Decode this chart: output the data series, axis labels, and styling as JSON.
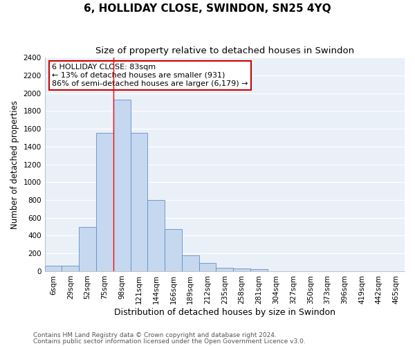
{
  "title1": "6, HOLLIDAY CLOSE, SWINDON, SN25 4YQ",
  "title2": "Size of property relative to detached houses in Swindon",
  "xlabel": "Distribution of detached houses by size in Swindon",
  "ylabel": "Number of detached properties",
  "categories": [
    "6sqm",
    "29sqm",
    "52sqm",
    "75sqm",
    "98sqm",
    "121sqm",
    "144sqm",
    "166sqm",
    "189sqm",
    "212sqm",
    "235sqm",
    "258sqm",
    "281sqm",
    "304sqm",
    "327sqm",
    "350sqm",
    "373sqm",
    "396sqm",
    "419sqm",
    "442sqm",
    "465sqm"
  ],
  "values": [
    60,
    60,
    500,
    1550,
    1930,
    1550,
    800,
    470,
    175,
    90,
    35,
    30,
    20,
    0,
    0,
    0,
    0,
    0,
    0,
    0,
    0
  ],
  "bar_color": "#c5d8f0",
  "bar_edge_color": "#6090c0",
  "background_color": "#eaf0f8",
  "grid_color": "#ffffff",
  "annotation_box_text": "6 HOLLIDAY CLOSE: 83sqm\n← 13% of detached houses are smaller (931)\n86% of semi-detached houses are larger (6,179) →",
  "annotation_box_color": "#ffffff",
  "annotation_box_edge_color": "#cc0000",
  "red_line_x": 3.5,
  "ylim": [
    0,
    2400
  ],
  "yticks": [
    0,
    200,
    400,
    600,
    800,
    1000,
    1200,
    1400,
    1600,
    1800,
    2000,
    2200,
    2400
  ],
  "footer1": "Contains HM Land Registry data © Crown copyright and database right 2024.",
  "footer2": "Contains public sector information licensed under the Open Government Licence v3.0.",
  "title1_fontsize": 11,
  "title2_fontsize": 9.5,
  "xlabel_fontsize": 9,
  "ylabel_fontsize": 8.5,
  "tick_fontsize": 7.5,
  "annotation_fontsize": 8,
  "footer_fontsize": 6.5
}
